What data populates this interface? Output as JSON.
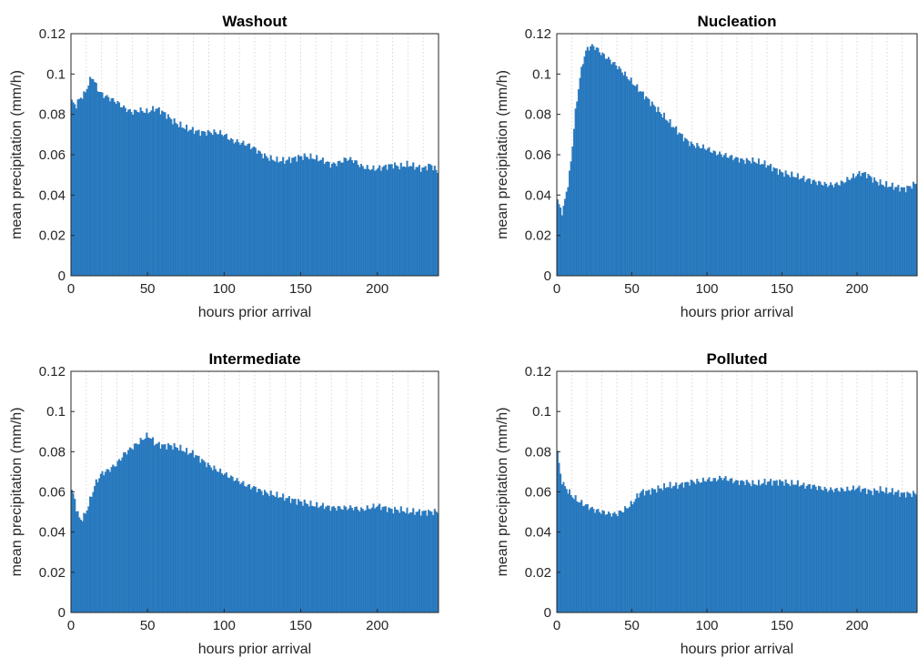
{
  "chart_data": [
    {
      "type": "bar",
      "title": "Washout",
      "xlabel": "hours prior arrival",
      "ylabel": "mean precipitation (mm/h)",
      "xlim": [
        0,
        240
      ],
      "ylim": [
        0,
        0.12
      ],
      "xticks": [
        "0",
        "50",
        "100",
        "150",
        "200"
      ],
      "yticks": [
        "0",
        "0.02",
        "0.04",
        "0.06",
        "0.08",
        "0.1",
        "0.12"
      ],
      "grid": "vertical dotted",
      "bin_width_hours": 1,
      "color": "#2b7fc6",
      "profile": [
        [
          0,
          0.087
        ],
        [
          3,
          0.084
        ],
        [
          6,
          0.088
        ],
        [
          9,
          0.09
        ],
        [
          12,
          0.096
        ],
        [
          14,
          0.099
        ],
        [
          17,
          0.093
        ],
        [
          20,
          0.09
        ],
        [
          25,
          0.088
        ],
        [
          30,
          0.086
        ],
        [
          35,
          0.083
        ],
        [
          40,
          0.081
        ],
        [
          45,
          0.082
        ],
        [
          50,
          0.081
        ],
        [
          55,
          0.083
        ],
        [
          58,
          0.082
        ],
        [
          62,
          0.08
        ],
        [
          66,
          0.077
        ],
        [
          70,
          0.075
        ],
        [
          75,
          0.073
        ],
        [
          80,
          0.072
        ],
        [
          85,
          0.071
        ],
        [
          90,
          0.071
        ],
        [
          95,
          0.071
        ],
        [
          100,
          0.07
        ],
        [
          105,
          0.067
        ],
        [
          110,
          0.066
        ],
        [
          115,
          0.065
        ],
        [
          120,
          0.063
        ],
        [
          125,
          0.06
        ],
        [
          130,
          0.058
        ],
        [
          135,
          0.057
        ],
        [
          140,
          0.057
        ],
        [
          145,
          0.058
        ],
        [
          150,
          0.059
        ],
        [
          155,
          0.059
        ],
        [
          160,
          0.058
        ],
        [
          165,
          0.057
        ],
        [
          170,
          0.055
        ],
        [
          175,
          0.056
        ],
        [
          180,
          0.058
        ],
        [
          185,
          0.057
        ],
        [
          190,
          0.054
        ],
        [
          195,
          0.053
        ],
        [
          200,
          0.053
        ],
        [
          205,
          0.054
        ],
        [
          210,
          0.055
        ],
        [
          215,
          0.054
        ],
        [
          220,
          0.055
        ],
        [
          225,
          0.054
        ],
        [
          230,
          0.053
        ],
        [
          235,
          0.055
        ],
        [
          240,
          0.051
        ]
      ]
    },
    {
      "type": "bar",
      "title": "Nucleation",
      "xlabel": "hours prior arrival",
      "ylabel": "mean precipitation (mm/h)",
      "xlim": [
        0,
        240
      ],
      "ylim": [
        0,
        0.12
      ],
      "xticks": [
        "0",
        "50",
        "100",
        "150",
        "200"
      ],
      "yticks": [
        "0",
        "0.02",
        "0.04",
        "0.06",
        "0.08",
        "0.1",
        "0.12"
      ],
      "grid": "vertical dotted",
      "bin_width_hours": 1,
      "color": "#2b7fc6",
      "profile": [
        [
          0,
          0.038
        ],
        [
          2,
          0.034
        ],
        [
          4,
          0.031
        ],
        [
          6,
          0.04
        ],
        [
          8,
          0.047
        ],
        [
          10,
          0.06
        ],
        [
          12,
          0.078
        ],
        [
          15,
          0.096
        ],
        [
          18,
          0.108
        ],
        [
          20,
          0.112
        ],
        [
          23,
          0.114
        ],
        [
          26,
          0.113
        ],
        [
          30,
          0.11
        ],
        [
          35,
          0.107
        ],
        [
          40,
          0.104
        ],
        [
          45,
          0.1
        ],
        [
          50,
          0.096
        ],
        [
          55,
          0.092
        ],
        [
          60,
          0.088
        ],
        [
          65,
          0.084
        ],
        [
          70,
          0.08
        ],
        [
          75,
          0.076
        ],
        [
          80,
          0.072
        ],
        [
          85,
          0.068
        ],
        [
          90,
          0.065
        ],
        [
          95,
          0.064
        ],
        [
          100,
          0.063
        ],
        [
          105,
          0.061
        ],
        [
          110,
          0.06
        ],
        [
          115,
          0.059
        ],
        [
          120,
          0.058
        ],
        [
          125,
          0.057
        ],
        [
          130,
          0.057
        ],
        [
          135,
          0.056
        ],
        [
          140,
          0.055
        ],
        [
          145,
          0.053
        ],
        [
          150,
          0.051
        ],
        [
          155,
          0.05
        ],
        [
          160,
          0.049
        ],
        [
          165,
          0.048
        ],
        [
          170,
          0.047
        ],
        [
          175,
          0.046
        ],
        [
          180,
          0.045
        ],
        [
          185,
          0.045
        ],
        [
          190,
          0.046
        ],
        [
          195,
          0.048
        ],
        [
          200,
          0.05
        ],
        [
          203,
          0.051
        ],
        [
          207,
          0.05
        ],
        [
          212,
          0.047
        ],
        [
          218,
          0.045
        ],
        [
          225,
          0.044
        ],
        [
          232,
          0.043
        ],
        [
          240,
          0.046
        ]
      ]
    },
    {
      "type": "bar",
      "title": "Intermediate",
      "xlabel": "hours prior arrival",
      "ylabel": "mean precipitation (mm/h)",
      "xlim": [
        0,
        240
      ],
      "ylim": [
        0,
        0.12
      ],
      "xticks": [
        "0",
        "50",
        "100",
        "150",
        "200"
      ],
      "yticks": [
        "0",
        "0.02",
        "0.04",
        "0.06",
        "0.08",
        "0.1",
        "0.12"
      ],
      "grid": "vertical dotted",
      "bin_width_hours": 1,
      "color": "#2b7fc6",
      "profile": [
        [
          0,
          0.061
        ],
        [
          2,
          0.058
        ],
        [
          4,
          0.05
        ],
        [
          6,
          0.046
        ],
        [
          8,
          0.047
        ],
        [
          10,
          0.05
        ],
        [
          13,
          0.057
        ],
        [
          16,
          0.064
        ],
        [
          20,
          0.069
        ],
        [
          25,
          0.071
        ],
        [
          30,
          0.074
        ],
        [
          35,
          0.079
        ],
        [
          40,
          0.082
        ],
        [
          45,
          0.085
        ],
        [
          50,
          0.088
        ],
        [
          52,
          0.087
        ],
        [
          55,
          0.084
        ],
        [
          60,
          0.083
        ],
        [
          65,
          0.083
        ],
        [
          70,
          0.082
        ],
        [
          75,
          0.08
        ],
        [
          80,
          0.079
        ],
        [
          85,
          0.076
        ],
        [
          90,
          0.073
        ],
        [
          95,
          0.071
        ],
        [
          100,
          0.069
        ],
        [
          105,
          0.067
        ],
        [
          110,
          0.065
        ],
        [
          115,
          0.063
        ],
        [
          120,
          0.062
        ],
        [
          125,
          0.06
        ],
        [
          130,
          0.059
        ],
        [
          135,
          0.058
        ],
        [
          140,
          0.057
        ],
        [
          145,
          0.056
        ],
        [
          150,
          0.055
        ],
        [
          155,
          0.054
        ],
        [
          160,
          0.053
        ],
        [
          165,
          0.053
        ],
        [
          170,
          0.052
        ],
        [
          175,
          0.052
        ],
        [
          180,
          0.052
        ],
        [
          185,
          0.052
        ],
        [
          190,
          0.051
        ],
        [
          195,
          0.052
        ],
        [
          200,
          0.053
        ],
        [
          205,
          0.052
        ],
        [
          210,
          0.051
        ],
        [
          215,
          0.051
        ],
        [
          220,
          0.05
        ],
        [
          225,
          0.05
        ],
        [
          230,
          0.05
        ],
        [
          240,
          0.05
        ]
      ]
    },
    {
      "type": "bar",
      "title": "Polluted",
      "xlabel": "hours prior arrival",
      "ylabel": "mean precipitation (mm/h)",
      "xlim": [
        0,
        240
      ],
      "ylim": [
        0,
        0.12
      ],
      "xticks": [
        "0",
        "50",
        "100",
        "150",
        "200"
      ],
      "yticks": [
        "0",
        "0.02",
        "0.04",
        "0.06",
        "0.08",
        "0.1",
        "0.12"
      ],
      "grid": "vertical dotted",
      "bin_width_hours": 1,
      "color": "#2b7fc6",
      "profile": [
        [
          0,
          0.081
        ],
        [
          1,
          0.078
        ],
        [
          2,
          0.07
        ],
        [
          4,
          0.064
        ],
        [
          7,
          0.061
        ],
        [
          10,
          0.058
        ],
        [
          15,
          0.055
        ],
        [
          20,
          0.053
        ],
        [
          25,
          0.051
        ],
        [
          30,
          0.05
        ],
        [
          35,
          0.049
        ],
        [
          40,
          0.049
        ],
        [
          45,
          0.051
        ],
        [
          50,
          0.054
        ],
        [
          53,
          0.057
        ],
        [
          56,
          0.06
        ],
        [
          60,
          0.06
        ],
        [
          65,
          0.061
        ],
        [
          70,
          0.062
        ],
        [
          75,
          0.063
        ],
        [
          80,
          0.063
        ],
        [
          85,
          0.064
        ],
        [
          90,
          0.065
        ],
        [
          95,
          0.065
        ],
        [
          100,
          0.066
        ],
        [
          105,
          0.066
        ],
        [
          110,
          0.067
        ],
        [
          115,
          0.066
        ],
        [
          120,
          0.065
        ],
        [
          125,
          0.065
        ],
        [
          130,
          0.064
        ],
        [
          135,
          0.064
        ],
        [
          140,
          0.065
        ],
        [
          145,
          0.065
        ],
        [
          150,
          0.065
        ],
        [
          155,
          0.064
        ],
        [
          160,
          0.064
        ],
        [
          165,
          0.063
        ],
        [
          170,
          0.063
        ],
        [
          175,
          0.062
        ],
        [
          180,
          0.061
        ],
        [
          185,
          0.061
        ],
        [
          190,
          0.061
        ],
        [
          195,
          0.061
        ],
        [
          200,
          0.062
        ],
        [
          205,
          0.061
        ],
        [
          210,
          0.06
        ],
        [
          215,
          0.061
        ],
        [
          220,
          0.06
        ],
        [
          225,
          0.06
        ],
        [
          230,
          0.059
        ],
        [
          235,
          0.059
        ],
        [
          240,
          0.059
        ]
      ]
    }
  ]
}
